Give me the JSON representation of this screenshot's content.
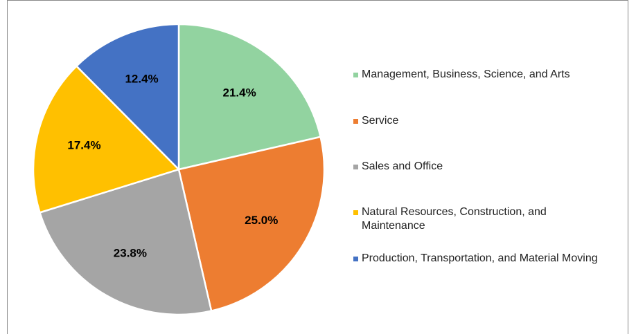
{
  "chart_data": {
    "type": "pie",
    "categories": [
      "Management, Business, Science, and Arts",
      "Service",
      "Sales and Office",
      "Natural Resources, Construction, and Maintenance",
      "Production, Transportation, and Material Moving"
    ],
    "values": [
      21.4,
      25.0,
      23.8,
      17.4,
      12.4
    ],
    "value_labels": [
      "21.4%",
      "25.0%",
      "23.8%",
      "17.4%",
      "12.4%"
    ],
    "colors": [
      "#92d3a0",
      "#ed7d31",
      "#a5a5a5",
      "#ffc000",
      "#4472c4"
    ],
    "legend": "right"
  }
}
